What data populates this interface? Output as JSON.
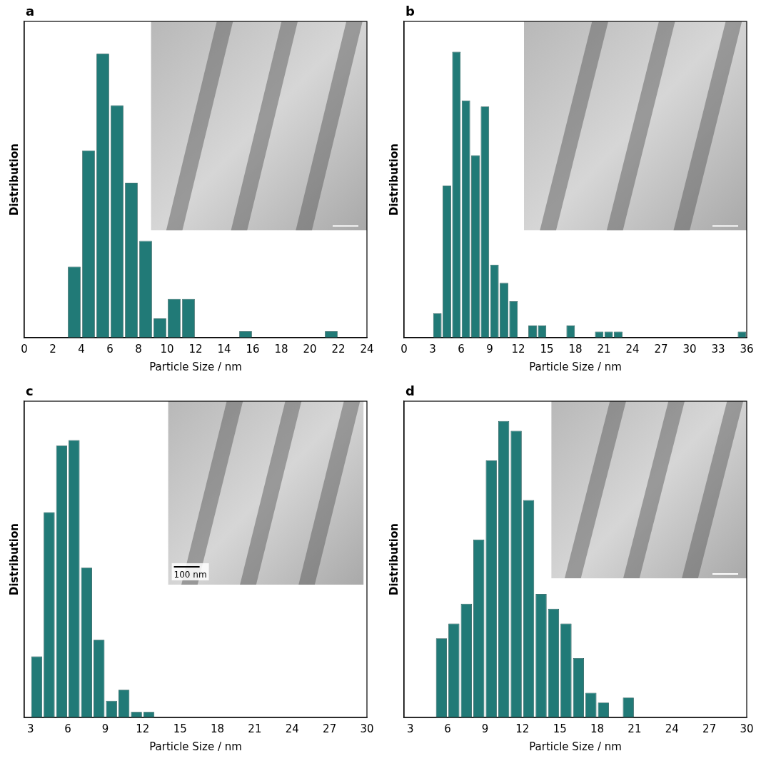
{
  "chart_data": [
    {
      "type": "histogram",
      "title": "a",
      "x_label": "Particle Size / nm",
      "y_label": "Distribution",
      "bins": [
        3,
        4,
        5,
        6,
        7,
        8,
        9,
        10,
        11,
        12,
        13,
        14,
        15,
        16,
        17,
        18,
        19,
        20,
        21,
        22
      ],
      "values": [
        11,
        29,
        44,
        36,
        24,
        15,
        3,
        6,
        6,
        0,
        0,
        0,
        1,
        0,
        0,
        0,
        0,
        0,
        1
      ],
      "color": "#217a77",
      "xlim": [
        0,
        24
      ],
      "xticks": [
        0,
        2,
        4,
        6,
        8,
        10,
        12,
        14,
        16,
        18,
        20,
        22,
        24
      ],
      "ylim": [
        0,
        49
      ],
      "tick_labels": "x",
      "grid": false
    },
    {
      "type": "histogram",
      "title": "b",
      "x_label": "Particle Size / nm",
      "y_label": "Distribution",
      "bins": [
        3,
        4,
        5,
        6,
        7,
        8,
        9,
        10,
        11,
        12,
        13,
        14,
        15,
        16,
        17,
        18,
        19,
        20,
        21,
        22,
        23,
        24,
        25,
        26,
        27,
        28,
        29,
        30,
        31,
        32,
        33,
        34,
        35,
        36
      ],
      "values": [
        4,
        25,
        47,
        39,
        30,
        38,
        12,
        9,
        6,
        0,
        2,
        2,
        0,
        0,
        2,
        0,
        0,
        1,
        1,
        1,
        0,
        0,
        0,
        0,
        0,
        0,
        0,
        0,
        0,
        0,
        0,
        0,
        1
      ],
      "color": "#217a77",
      "xlim": [
        0,
        36
      ],
      "xticks": [
        0,
        3,
        6,
        9,
        12,
        15,
        18,
        21,
        24,
        27,
        30,
        33,
        36
      ],
      "ylim": [
        0,
        52
      ],
      "tick_labels": "x",
      "grid": false
    },
    {
      "type": "histogram",
      "title": "c",
      "x_label": "Particle Size / nm",
      "y_label": "Distribution",
      "bins": [
        3,
        4,
        5,
        6,
        7,
        8,
        9,
        10,
        11,
        12,
        13
      ],
      "values": [
        11,
        37,
        49,
        50,
        27,
        14,
        3,
        5,
        1,
        1
      ],
      "color": "#217a77",
      "xlim": [
        2.5,
        30
      ],
      "xticks": [
        3,
        6,
        9,
        12,
        15,
        18,
        21,
        24,
        27,
        30
      ],
      "ylim": [
        0,
        57
      ],
      "tick_labels": "x",
      "grid": false,
      "annotations": [
        "100 nm"
      ]
    },
    {
      "type": "histogram",
      "title": "d",
      "x_label": "Particle Size / nm",
      "y_label": "Distribution",
      "bins": [
        5,
        6,
        7,
        8,
        9,
        10,
        11,
        12,
        13,
        14,
        15,
        16,
        17,
        18,
        19,
        20,
        21
      ],
      "values": [
        16,
        19,
        23,
        36,
        52,
        60,
        58,
        44,
        25,
        22,
        19,
        12,
        5,
        3,
        0,
        4
      ],
      "color": "#217a77",
      "xlim": [
        2.5,
        30
      ],
      "xticks": [
        3,
        6,
        9,
        12,
        15,
        18,
        21,
        24,
        27,
        30
      ],
      "ylim": [
        0,
        64
      ],
      "tick_labels": "x",
      "grid": false
    }
  ]
}
